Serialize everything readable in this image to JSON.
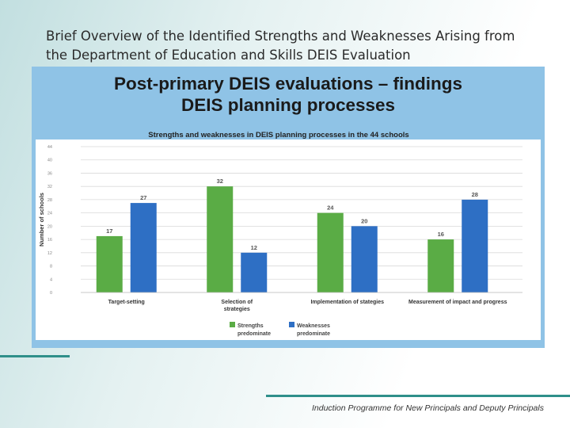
{
  "slide": {
    "title_line1": "Brief Overview of the Identified Strengths and Weaknesses Arising from",
    "title_line2": "the Department of Education and Skills  DEIS Evaluation",
    "footer": "Induction Programme for New Principals and Deputy Principals"
  },
  "panel": {
    "heading_line1": "Post-primary DEIS evaluations – findings",
    "heading_line2": "DEIS planning processes"
  },
  "colors": {
    "strengths": "#5aac45",
    "weaknesses": "#2e6fc4",
    "panel_bg": "#8fc3e6",
    "accent_rule": "#2f8f8a"
  },
  "chart_data": {
    "type": "bar",
    "title": "Strengths and weaknesses in DEIS planning processes in the 44 schools",
    "xlabel": "",
    "ylabel": "Number of schools",
    "ylim": [
      0,
      44
    ],
    "yticks": [
      0,
      4,
      8,
      12,
      16,
      20,
      24,
      28,
      32,
      36,
      40,
      44
    ],
    "categories": [
      [
        "Target-setting"
      ],
      [
        "Selection of",
        "strategies"
      ],
      [
        "Implementation of stategies"
      ],
      [
        "Measurement of impact and progress"
      ]
    ],
    "series": [
      {
        "name": "Strengths predominate",
        "legend_lines": [
          "Strengths",
          "predominate"
        ],
        "values": [
          17,
          32,
          24,
          16
        ]
      },
      {
        "name": "Weaknesses predominate",
        "legend_lines": [
          "Weaknesses",
          "predominate"
        ],
        "values": [
          27,
          12,
          20,
          28
        ]
      }
    ],
    "grid": true,
    "legend": "bottom"
  }
}
